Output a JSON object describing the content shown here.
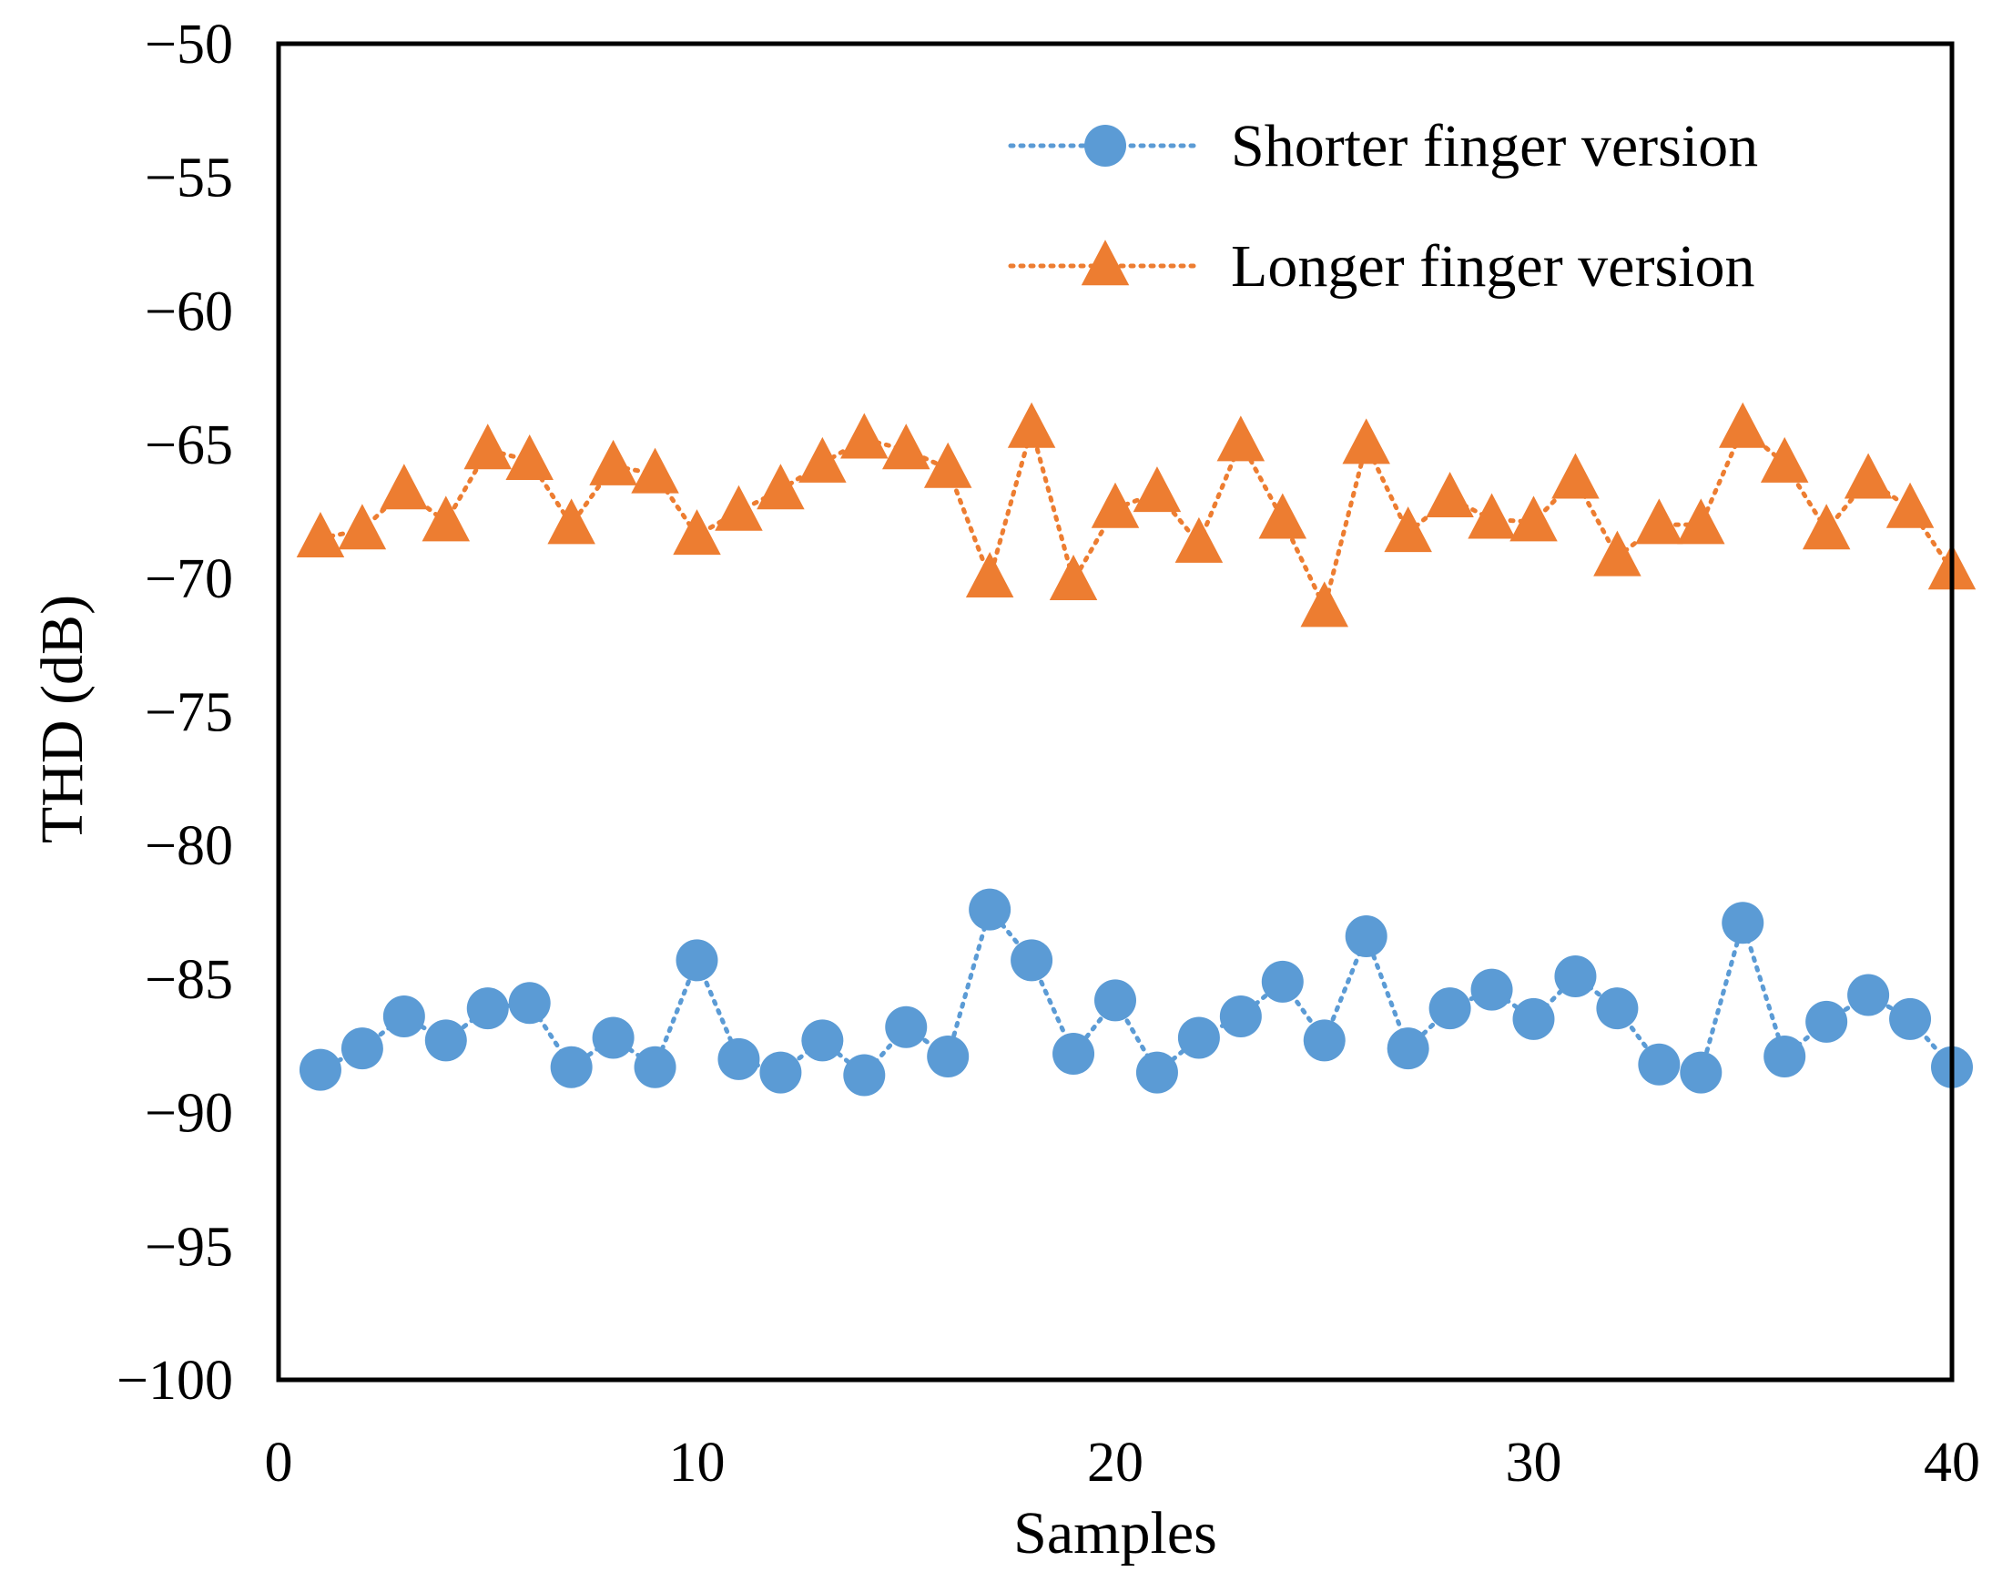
{
  "chart_data": {
    "type": "line",
    "title": "",
    "xlabel": "Samples",
    "ylabel": "THD (dB)",
    "xlim": [
      0,
      40
    ],
    "ylim": [
      -100,
      -50
    ],
    "xticks": [
      0,
      10,
      20,
      30,
      40
    ],
    "yticks": [
      -100,
      -95,
      -90,
      -85,
      -80,
      -75,
      -70,
      -65,
      -60,
      -55,
      -50
    ],
    "xtick_labels": [
      "0",
      "10",
      "20",
      "30",
      "40"
    ],
    "ytick_labels": [
      "−100",
      "−95",
      "−90",
      "−85",
      "−80",
      "−75",
      "−70",
      "−65",
      "−60",
      "−55",
      "−50"
    ],
    "grid": false,
    "legend_position": "top-right",
    "x": [
      1,
      2,
      3,
      4,
      5,
      6,
      7,
      8,
      9,
      10,
      11,
      12,
      13,
      14,
      15,
      16,
      17,
      18,
      19,
      20,
      21,
      22,
      23,
      24,
      25,
      26,
      27,
      28,
      29,
      30,
      31,
      32,
      33,
      34,
      35,
      36,
      37,
      38,
      39,
      40
    ],
    "series": [
      {
        "name": "Shorter finger version",
        "color": "#5B9BD5",
        "marker": "circle",
        "line_style": "dotted",
        "values": [
          -88.4,
          -87.6,
          -86.4,
          -87.3,
          -86.1,
          -85.9,
          -88.3,
          -87.2,
          -88.3,
          -84.3,
          -88.0,
          -88.5,
          -87.3,
          -88.6,
          -86.8,
          -87.9,
          -82.4,
          -84.3,
          -87.8,
          -85.8,
          -88.5,
          -87.2,
          -86.4,
          -85.1,
          -87.3,
          -83.4,
          -87.6,
          -86.1,
          -85.4,
          -86.5,
          -84.9,
          -86.1,
          -88.2,
          -88.5,
          -82.9,
          -87.9,
          -86.6,
          -85.6,
          -86.5,
          -88.3
        ]
      },
      {
        "name": "Longer finger version",
        "color": "#ED7D31",
        "marker": "triangle",
        "line_style": "dotted",
        "values": [
          -68.5,
          -68.2,
          -66.7,
          -67.9,
          -65.2,
          -65.6,
          -68.0,
          -65.8,
          -66.1,
          -68.4,
          -67.5,
          -66.7,
          -65.7,
          -64.8,
          -65.2,
          -65.9,
          -70.0,
          -64.4,
          -70.1,
          -67.4,
          -66.8,
          -68.7,
          -64.9,
          -67.8,
          -71.1,
          -65.0,
          -68.3,
          -67.0,
          -67.8,
          -67.9,
          -66.3,
          -69.2,
          -68.0,
          -68.0,
          -64.4,
          -65.7,
          -68.2,
          -66.3,
          -67.4,
          -69.7
        ]
      }
    ]
  }
}
